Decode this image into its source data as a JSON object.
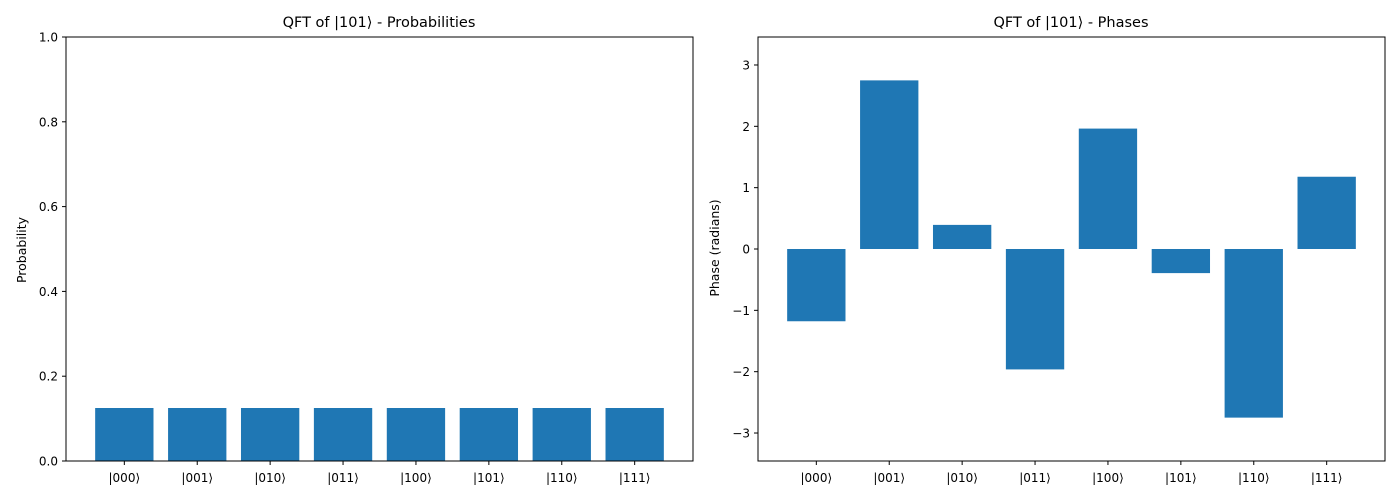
{
  "chart_data": [
    {
      "type": "bar",
      "title": "QFT of |101⟩ - Probabilities",
      "xlabel": "",
      "ylabel": "Probability",
      "categories": [
        "|000⟩",
        "|001⟩",
        "|010⟩",
        "|011⟩",
        "|100⟩",
        "|101⟩",
        "|110⟩",
        "|111⟩"
      ],
      "values": [
        0.125,
        0.125,
        0.125,
        0.125,
        0.125,
        0.125,
        0.125,
        0.125
      ],
      "ylim": [
        0,
        1.0
      ],
      "yticks": [
        "0.0",
        "0.2",
        "0.4",
        "0.6",
        "0.8",
        "1.0"
      ],
      "grid": false,
      "bar_color": "#1f77b4"
    },
    {
      "type": "bar",
      "title": "QFT of |101⟩ - Phases",
      "xlabel": "",
      "ylabel": "Phase (radians)",
      "categories": [
        "|000⟩",
        "|001⟩",
        "|010⟩",
        "|011⟩",
        "|100⟩",
        "|101⟩",
        "|110⟩",
        "|111⟩"
      ],
      "values": [
        -1.178,
        2.749,
        0.393,
        -1.963,
        1.963,
        -0.393,
        -2.749,
        1.178
      ],
      "ylim": [
        -3.142,
        3.142
      ],
      "yticks": [
        "−3",
        "−2",
        "−1",
        "0",
        "1",
        "2",
        "3"
      ],
      "grid": false,
      "bar_color": "#1f77b4"
    }
  ]
}
